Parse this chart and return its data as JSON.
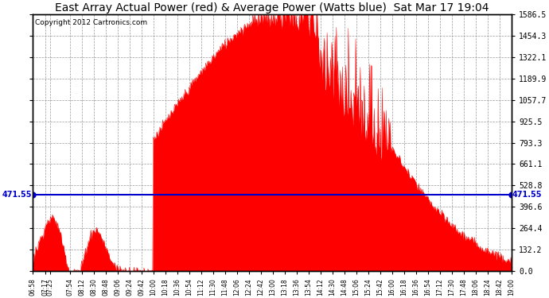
{
  "title": "East Array Actual Power (red) & Average Power (Watts blue)  Sat Mar 17 19:04",
  "copyright": "Copyright 2012 Cartronics.com",
  "avg_power": 471.55,
  "ymax": 1586.5,
  "ymin": 0.0,
  "yticks": [
    0.0,
    132.2,
    264.4,
    396.6,
    528.8,
    661.1,
    793.3,
    925.5,
    1057.7,
    1189.9,
    1322.1,
    1454.3,
    1586.5
  ],
  "background_color": "#ffffff",
  "fill_color": "#ff0000",
  "line_color": "#0000cc",
  "grid_color": "#999999",
  "title_fontsize": 10,
  "copyright_fontsize": 6.5,
  "x_start": "06:58",
  "x_end": "19:00",
  "x_times": [
    "06:58",
    "07:17",
    "07:25",
    "07:54",
    "08:12",
    "08:30",
    "08:48",
    "09:06",
    "09:24",
    "09:42",
    "10:00",
    "10:18",
    "10:36",
    "10:54",
    "11:12",
    "11:30",
    "11:48",
    "12:06",
    "12:24",
    "12:42",
    "13:00",
    "13:18",
    "13:36",
    "13:54",
    "14:12",
    "14:30",
    "14:48",
    "15:06",
    "15:24",
    "15:42",
    "16:00",
    "16:18",
    "16:36",
    "16:54",
    "17:12",
    "17:30",
    "17:48",
    "18:06",
    "18:24",
    "18:42",
    "19:00"
  ]
}
